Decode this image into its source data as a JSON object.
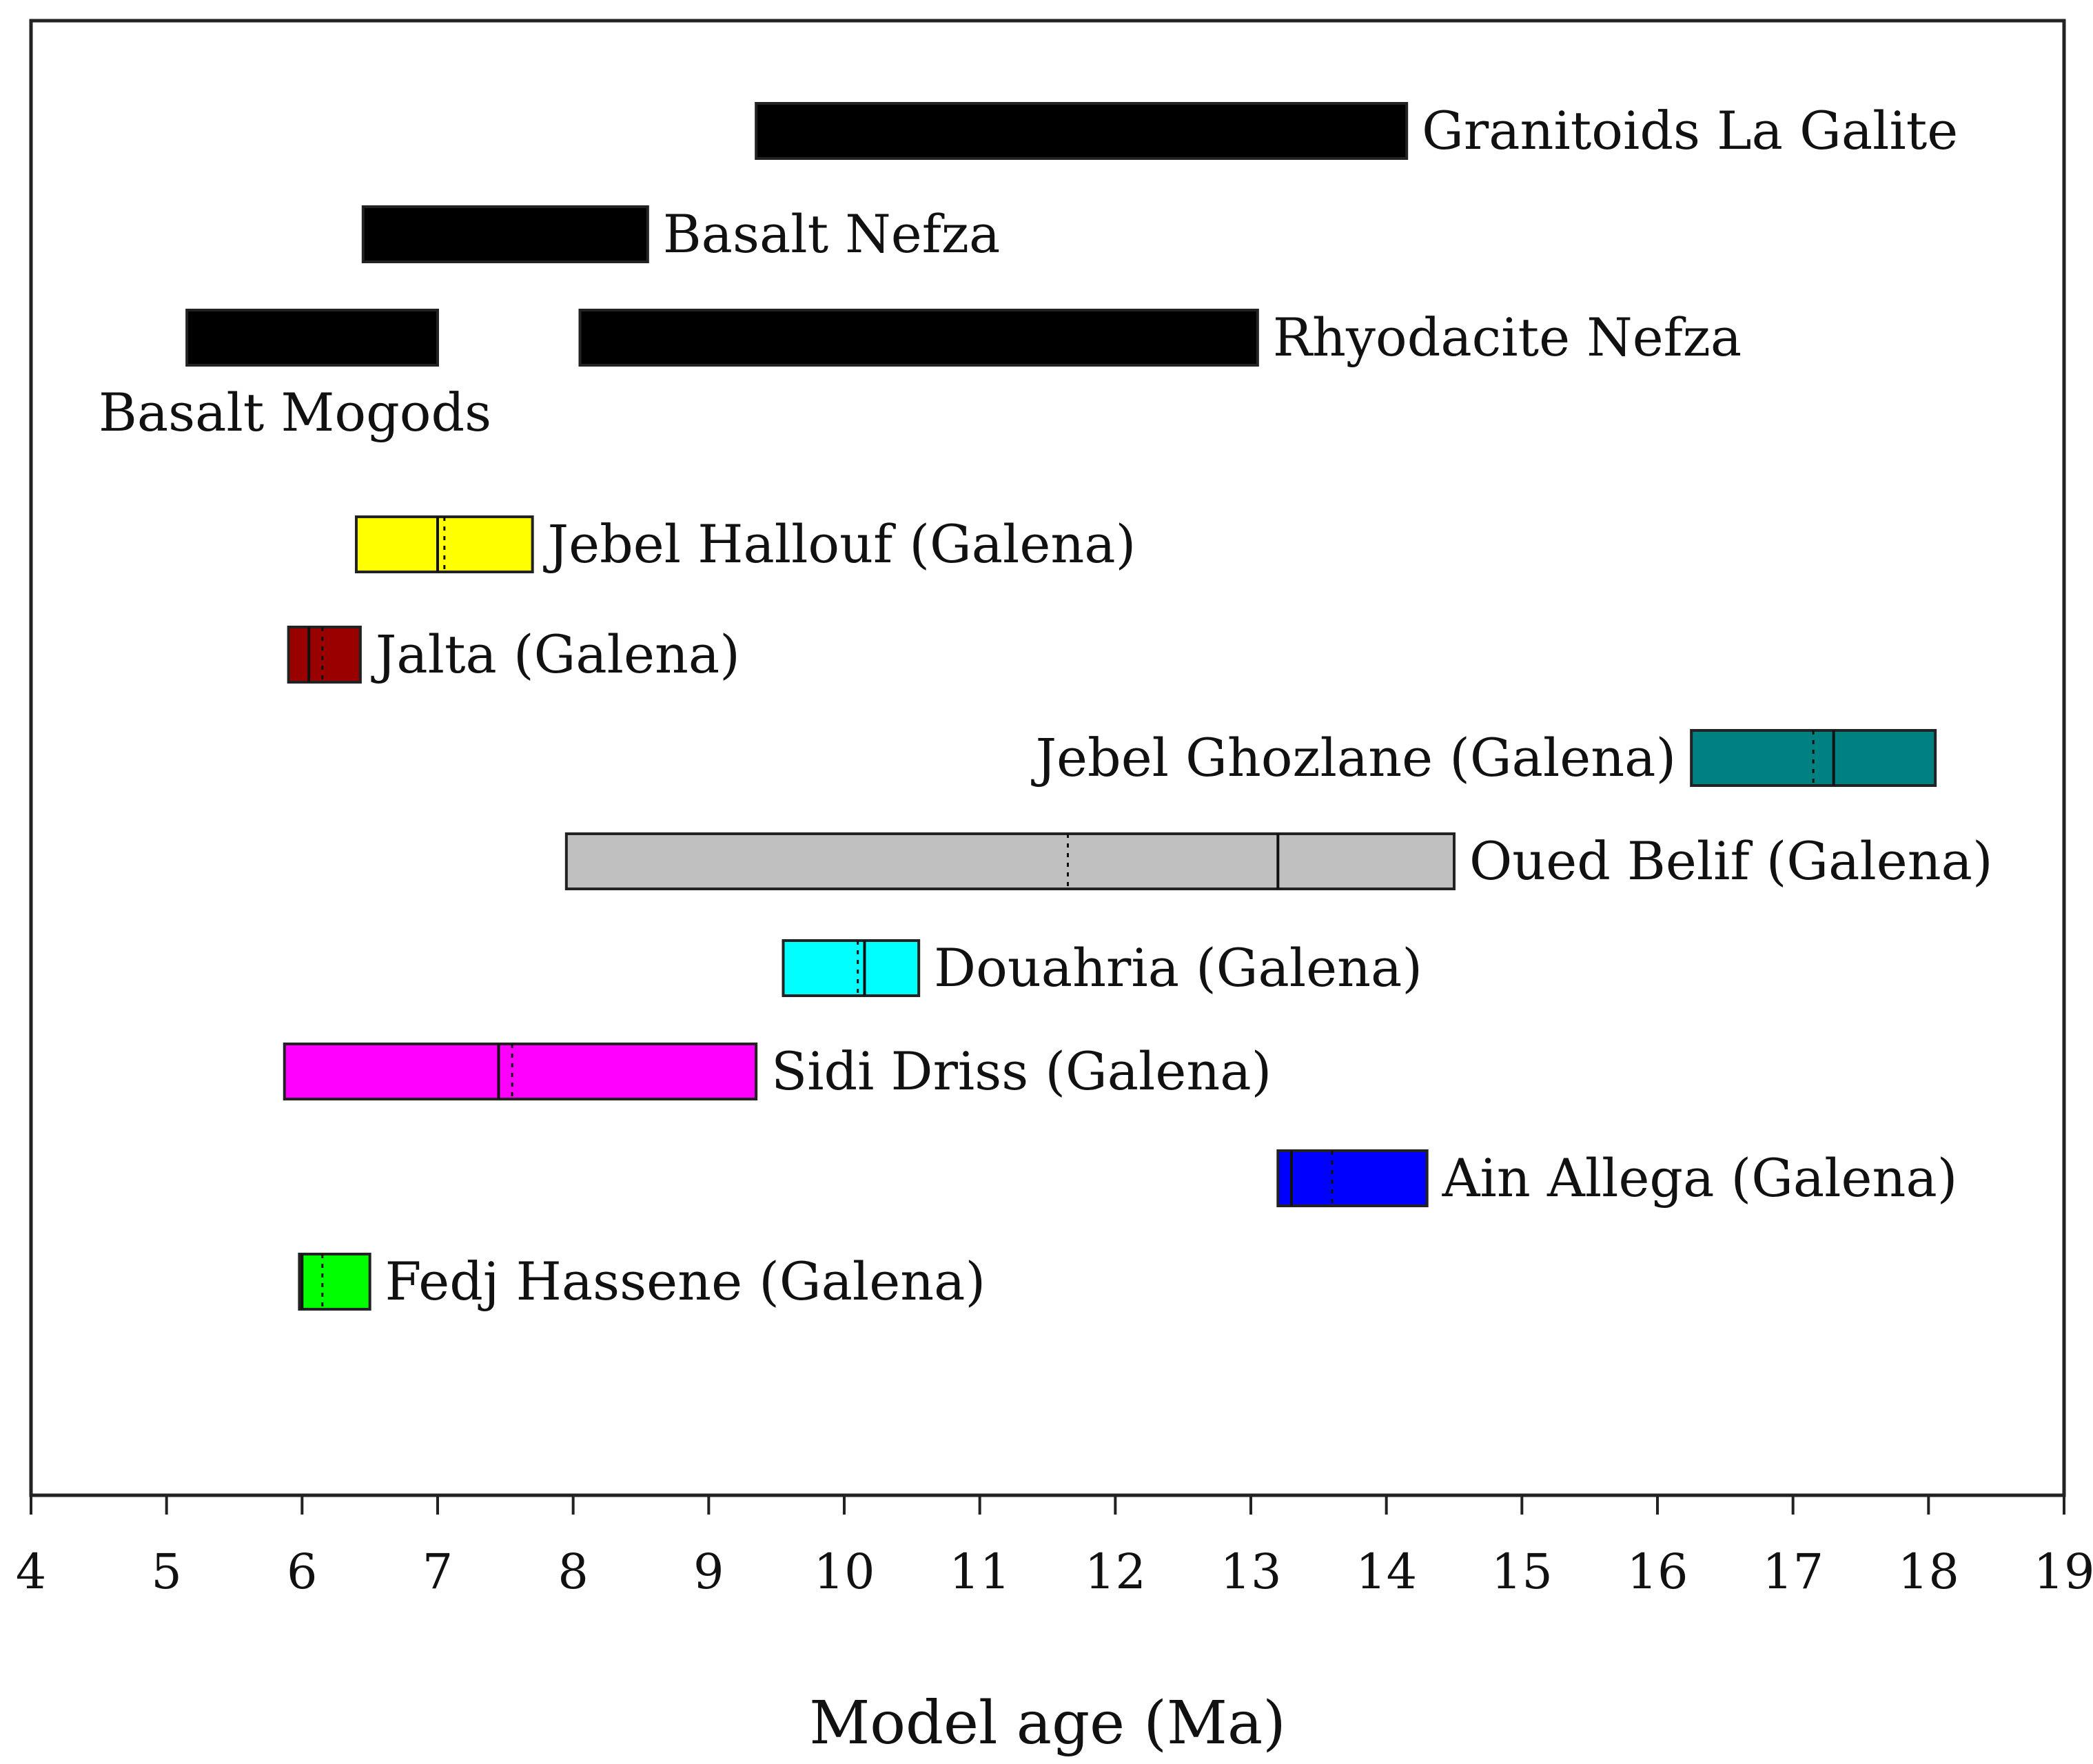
{
  "chart_data": {
    "type": "range-bar",
    "title": "",
    "xlabel": "Model age (Ma)",
    "ylabel": "",
    "xlim": [
      4,
      19
    ],
    "xticks": [
      4,
      5,
      6,
      7,
      8,
      9,
      10,
      11,
      12,
      13,
      14,
      15,
      16,
      17,
      18,
      19
    ],
    "grid": false,
    "bars": [
      {
        "name": "Granitoids La Galite",
        "start": 9.35,
        "end": 14.15,
        "color": "#000000",
        "label_side": "right"
      },
      {
        "name": "Basalt Nefza",
        "start": 6.45,
        "end": 8.55,
        "color": "#000000",
        "label_side": "right"
      },
      {
        "name": "Rhyodacite Nefza",
        "start": 8.05,
        "end": 13.05,
        "color": "#000000",
        "label_side": "right"
      },
      {
        "name": "Basalt Mogods",
        "start": 5.15,
        "end": 7.0,
        "color": "#000000",
        "label_side": "below"
      },
      {
        "name": "Jebel Hallouf (Galena)",
        "start": 6.4,
        "end": 7.7,
        "median": 7.0,
        "mean": 7.05,
        "color": "#ffff00",
        "label_side": "right"
      },
      {
        "name": "Jalta (Galena)",
        "start": 5.9,
        "end": 6.43,
        "median": 6.05,
        "mean": 6.15,
        "color": "#990000",
        "label_side": "right"
      },
      {
        "name": "Jebel Ghozlane (Galena)",
        "start": 16.25,
        "end": 18.05,
        "median": 17.3,
        "mean": 17.15,
        "color": "#008080",
        "label_side": "left"
      },
      {
        "name": "Oued Belif (Galena)",
        "start": 7.95,
        "end": 14.5,
        "median": 13.2,
        "mean": 11.65,
        "color": "#c0c0c0",
        "label_side": "right"
      },
      {
        "name": "Douahria (Galena)",
        "start": 9.55,
        "end": 10.55,
        "median": 10.15,
        "mean": 10.1,
        "color": "#00ffff",
        "label_side": "right"
      },
      {
        "name": "Sidi Driss (Galena)",
        "start": 5.87,
        "end": 9.35,
        "median": 7.45,
        "mean": 7.55,
        "color": "#ff00ff",
        "label_side": "right"
      },
      {
        "name": "Ain Allega (Galena)",
        "start": 13.2,
        "end": 14.3,
        "median": 13.3,
        "mean": 13.6,
        "color": "#0000ff",
        "label_side": "right"
      },
      {
        "name": "Fedj Hassene (Galena)",
        "start": 5.98,
        "end": 6.5,
        "median": 6.0,
        "mean": 6.15,
        "color": "#00ff00",
        "label_side": "right"
      }
    ]
  }
}
